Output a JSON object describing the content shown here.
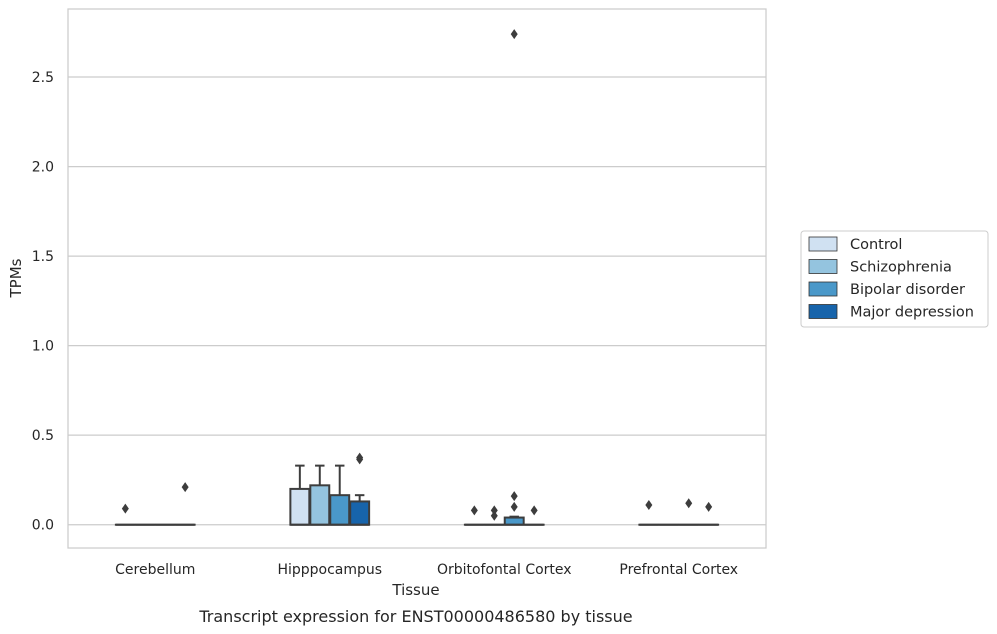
{
  "caption": "Transcript expression for ENST00000486580 by tissue",
  "chart_data": {
    "type": "box",
    "title": "",
    "xlabel": "Tissue",
    "ylabel": "TPMs",
    "ylim": [
      -0.13,
      2.88
    ],
    "yticks": [
      "0.0",
      "0.5",
      "1.0",
      "1.5",
      "2.0",
      "2.5"
    ],
    "grid": "horizontal",
    "legend_position": "right",
    "categories": [
      "Cerebellum",
      "Hipppocampus",
      "Orbitofontal Cortex",
      "Prefrontal Cortex"
    ],
    "series": [
      {
        "name": "Control",
        "color": "#d0e1f2",
        "boxes": [
          {
            "q1": 0,
            "median": 0,
            "q3": 0,
            "whisker_low": 0,
            "whisker_high": 0,
            "outliers": [
              0.09
            ]
          },
          {
            "q1": 0,
            "median": 0,
            "q3": 0.2,
            "whisker_low": 0,
            "whisker_high": 0.33,
            "outliers": []
          },
          {
            "q1": 0,
            "median": 0,
            "q3": 0,
            "whisker_low": 0,
            "whisker_high": 0,
            "outliers": [
              0.08
            ]
          },
          {
            "q1": 0,
            "median": 0,
            "q3": 0,
            "whisker_low": 0,
            "whisker_high": 0,
            "outliers": [
              0.11
            ]
          }
        ]
      },
      {
        "name": "Schizophrenia",
        "color": "#94c4df",
        "boxes": [
          {
            "q1": 0,
            "median": 0,
            "q3": 0,
            "whisker_low": 0,
            "whisker_high": 0,
            "outliers": []
          },
          {
            "q1": 0,
            "median": 0,
            "q3": 0.22,
            "whisker_low": 0,
            "whisker_high": 0.33,
            "outliers": []
          },
          {
            "q1": 0,
            "median": 0,
            "q3": 0,
            "whisker_low": 0,
            "whisker_high": 0,
            "outliers": [
              0.05,
              0.08
            ]
          },
          {
            "q1": 0,
            "median": 0,
            "q3": 0,
            "whisker_low": 0,
            "whisker_high": 0,
            "outliers": []
          }
        ]
      },
      {
        "name": "Bipolar disorder",
        "color": "#4a98c9",
        "boxes": [
          {
            "q1": 0,
            "median": 0,
            "q3": 0,
            "whisker_low": 0,
            "whisker_high": 0,
            "outliers": []
          },
          {
            "q1": 0,
            "median": 0,
            "q3": 0.165,
            "whisker_low": 0,
            "whisker_high": 0.33,
            "outliers": []
          },
          {
            "q1": 0,
            "median": 0,
            "q3": 0.04,
            "whisker_low": 0,
            "whisker_high": 0.045,
            "outliers": [
              0.1,
              0.16,
              2.74
            ]
          },
          {
            "q1": 0,
            "median": 0,
            "q3": 0,
            "whisker_low": 0,
            "whisker_high": 0,
            "outliers": [
              0.12
            ]
          }
        ]
      },
      {
        "name": "Major depression",
        "color": "#1764ab",
        "boxes": [
          {
            "q1": 0,
            "median": 0,
            "q3": 0,
            "whisker_low": 0,
            "whisker_high": 0,
            "outliers": [
              0.21
            ]
          },
          {
            "q1": 0,
            "median": 0,
            "q3": 0.13,
            "whisker_low": 0,
            "whisker_high": 0.165,
            "outliers": [
              0.365,
              0.375
            ]
          },
          {
            "q1": 0,
            "median": 0,
            "q3": 0,
            "whisker_low": 0,
            "whisker_high": 0,
            "outliers": [
              0.08
            ]
          },
          {
            "q1": 0,
            "median": 0,
            "q3": 0,
            "whisker_low": 0,
            "whisker_high": 0,
            "outliers": [
              0.1
            ]
          }
        ]
      }
    ]
  }
}
